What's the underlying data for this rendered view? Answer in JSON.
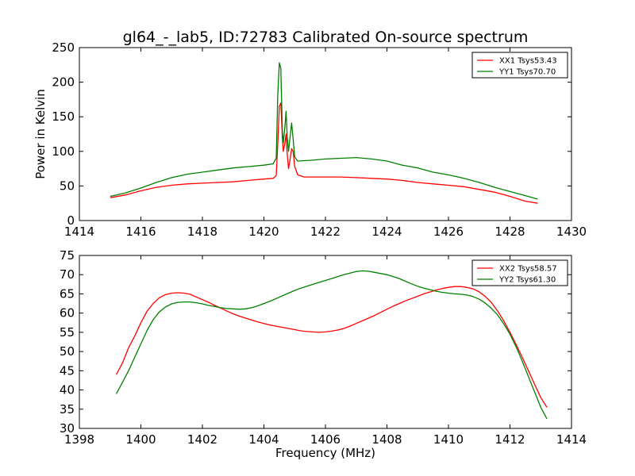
{
  "chart_data": [
    {
      "type": "line",
      "title": "gl64_-_lab5, ID:72783 Calibrated On-source spectrum",
      "xlabel": "",
      "ylabel": "Power in Kelvin",
      "xlim": [
        1414,
        1430
      ],
      "ylim": [
        0,
        250
      ],
      "xticks": [
        1414,
        1416,
        1418,
        1420,
        1422,
        1424,
        1426,
        1428,
        1430
      ],
      "yticks": [
        0,
        50,
        100,
        150,
        200,
        250
      ],
      "grid": false,
      "legend_position": "top-right",
      "series": [
        {
          "name": "XX1 Tsys53.43",
          "color": "#ff0000",
          "points": [
            [
              1415.0,
              33
            ],
            [
              1415.5,
              37
            ],
            [
              1416.0,
              43
            ],
            [
              1416.5,
              48
            ],
            [
              1417.0,
              51
            ],
            [
              1417.5,
              53
            ],
            [
              1418.0,
              54
            ],
            [
              1418.5,
              55
            ],
            [
              1419.0,
              56
            ],
            [
              1419.5,
              58
            ],
            [
              1420.0,
              60
            ],
            [
              1420.3,
              61
            ],
            [
              1420.4,
              65
            ],
            [
              1420.45,
              110
            ],
            [
              1420.5,
              165
            ],
            [
              1420.55,
              170
            ],
            [
              1420.6,
              120
            ],
            [
              1420.63,
              100
            ],
            [
              1420.68,
              112
            ],
            [
              1420.72,
              125
            ],
            [
              1420.75,
              100
            ],
            [
              1420.8,
              75
            ],
            [
              1420.85,
              88
            ],
            [
              1420.9,
              104
            ],
            [
              1420.95,
              100
            ],
            [
              1421.0,
              78
            ],
            [
              1421.1,
              66
            ],
            [
              1421.3,
              63
            ],
            [
              1421.8,
              63
            ],
            [
              1422.5,
              63
            ],
            [
              1423.0,
              62
            ],
            [
              1423.5,
              61
            ],
            [
              1424.0,
              60
            ],
            [
              1424.5,
              58
            ],
            [
              1425.0,
              55
            ],
            [
              1425.5,
              53
            ],
            [
              1426.0,
              51
            ],
            [
              1426.5,
              49
            ],
            [
              1427.0,
              45
            ],
            [
              1427.5,
              41
            ],
            [
              1428.0,
              35
            ],
            [
              1428.5,
              28
            ],
            [
              1428.9,
              25
            ]
          ]
        },
        {
          "name": "YY1 Tsys70.70",
          "color": "#008000",
          "points": [
            [
              1415.0,
              35
            ],
            [
              1415.5,
              40
            ],
            [
              1416.0,
              47
            ],
            [
              1416.5,
              55
            ],
            [
              1417.0,
              62
            ],
            [
              1417.5,
              67
            ],
            [
              1418.0,
              70
            ],
            [
              1418.5,
              73
            ],
            [
              1419.0,
              76
            ],
            [
              1419.5,
              78
            ],
            [
              1420.0,
              80
            ],
            [
              1420.3,
              82
            ],
            [
              1420.4,
              90
            ],
            [
              1420.45,
              180
            ],
            [
              1420.5,
              228
            ],
            [
              1420.55,
              220
            ],
            [
              1420.6,
              130
            ],
            [
              1420.63,
              112
            ],
            [
              1420.68,
              135
            ],
            [
              1420.72,
              158
            ],
            [
              1420.76,
              120
            ],
            [
              1420.8,
              100
            ],
            [
              1420.85,
              120
            ],
            [
              1420.9,
              141
            ],
            [
              1420.95,
              118
            ],
            [
              1421.0,
              92
            ],
            [
              1421.1,
              86
            ],
            [
              1421.5,
              87
            ],
            [
              1422.0,
              89
            ],
            [
              1422.5,
              90
            ],
            [
              1423.0,
              91
            ],
            [
              1423.5,
              89
            ],
            [
              1424.0,
              86
            ],
            [
              1424.5,
              80
            ],
            [
              1425.0,
              76
            ],
            [
              1425.5,
              70
            ],
            [
              1426.0,
              66
            ],
            [
              1426.5,
              61
            ],
            [
              1427.0,
              55
            ],
            [
              1427.5,
              48
            ],
            [
              1428.0,
              42
            ],
            [
              1428.5,
              36
            ],
            [
              1428.9,
              31
            ]
          ]
        }
      ]
    },
    {
      "type": "line",
      "title": "",
      "xlabel": "Frequency (MHz)",
      "ylabel": "",
      "xlim": [
        1398,
        1414
      ],
      "ylim": [
        30,
        75
      ],
      "xticks": [
        1398,
        1400,
        1402,
        1404,
        1406,
        1408,
        1410,
        1412,
        1414
      ],
      "yticks": [
        30,
        35,
        40,
        45,
        50,
        55,
        60,
        65,
        70,
        75
      ],
      "grid": false,
      "legend_position": "top-right",
      "series": [
        {
          "name": "XX2 Tsys58.57",
          "color": "#ff0000",
          "points": [
            [
              1399.2,
              44
            ],
            [
              1399.4,
              47
            ],
            [
              1399.6,
              51
            ],
            [
              1399.8,
              54
            ],
            [
              1400.0,
              57.5
            ],
            [
              1400.2,
              60.5
            ],
            [
              1400.4,
              62.5
            ],
            [
              1400.6,
              64
            ],
            [
              1400.8,
              64.8
            ],
            [
              1401.0,
              65.2
            ],
            [
              1401.2,
              65.3
            ],
            [
              1401.4,
              65.2
            ],
            [
              1401.6,
              64.9
            ],
            [
              1401.8,
              64.2
            ],
            [
              1402.0,
              63.5
            ],
            [
              1402.2,
              62.8
            ],
            [
              1402.4,
              62
            ],
            [
              1402.6,
              61.3
            ],
            [
              1402.8,
              60.5
            ],
            [
              1403.0,
              59.8
            ],
            [
              1403.2,
              59.2
            ],
            [
              1403.4,
              58.7
            ],
            [
              1403.6,
              58.2
            ],
            [
              1403.8,
              57.7
            ],
            [
              1404.0,
              57.3
            ],
            [
              1404.2,
              56.9
            ],
            [
              1404.4,
              56.6
            ],
            [
              1404.6,
              56.3
            ],
            [
              1404.8,
              56
            ],
            [
              1405.0,
              55.7
            ],
            [
              1405.2,
              55.4
            ],
            [
              1405.4,
              55.2
            ],
            [
              1405.6,
              55.1
            ],
            [
              1405.8,
              55
            ],
            [
              1406.0,
              55.1
            ],
            [
              1406.2,
              55.3
            ],
            [
              1406.4,
              55.6
            ],
            [
              1406.6,
              56
            ],
            [
              1406.8,
              56.6
            ],
            [
              1407.0,
              57.3
            ],
            [
              1407.2,
              58
            ],
            [
              1407.4,
              58.7
            ],
            [
              1407.6,
              59.4
            ],
            [
              1407.8,
              60.2
            ],
            [
              1408.0,
              61
            ],
            [
              1408.2,
              61.8
            ],
            [
              1408.4,
              62.5
            ],
            [
              1408.6,
              63.2
            ],
            [
              1408.8,
              63.8
            ],
            [
              1409.0,
              64.4
            ],
            [
              1409.2,
              65
            ],
            [
              1409.4,
              65.5
            ],
            [
              1409.6,
              66
            ],
            [
              1409.8,
              66.4
            ],
            [
              1410.0,
              66.7
            ],
            [
              1410.2,
              66.9
            ],
            [
              1410.4,
              66.9
            ],
            [
              1410.6,
              66.7
            ],
            [
              1410.8,
              66.3
            ],
            [
              1411.0,
              65.5
            ],
            [
              1411.2,
              64.3
            ],
            [
              1411.4,
              62.7
            ],
            [
              1411.6,
              60.5
            ],
            [
              1411.8,
              58
            ],
            [
              1412.0,
              55
            ],
            [
              1412.2,
              51.8
            ],
            [
              1412.4,
              48.5
            ],
            [
              1412.6,
              45
            ],
            [
              1412.8,
              41.5
            ],
            [
              1413.0,
              38
            ],
            [
              1413.2,
              35.5
            ]
          ]
        },
        {
          "name": "YY2 Tsys61.30",
          "color": "#008000",
          "points": [
            [
              1399.2,
              39
            ],
            [
              1399.4,
              42
            ],
            [
              1399.6,
              45
            ],
            [
              1399.8,
              48.5
            ],
            [
              1400.0,
              52
            ],
            [
              1400.2,
              55.5
            ],
            [
              1400.4,
              58.3
            ],
            [
              1400.6,
              60.3
            ],
            [
              1400.8,
              61.6
            ],
            [
              1401.0,
              62.4
            ],
            [
              1401.2,
              62.8
            ],
            [
              1401.4,
              62.9
            ],
            [
              1401.6,
              62.9
            ],
            [
              1401.8,
              62.7
            ],
            [
              1402.0,
              62.4
            ],
            [
              1402.2,
              62
            ],
            [
              1402.4,
              61.7
            ],
            [
              1402.6,
              61.4
            ],
            [
              1402.8,
              61.2
            ],
            [
              1403.0,
              61.1
            ],
            [
              1403.2,
              61
            ],
            [
              1403.4,
              61.1
            ],
            [
              1403.6,
              61.4
            ],
            [
              1403.8,
              61.9
            ],
            [
              1404.0,
              62.5
            ],
            [
              1404.2,
              63.1
            ],
            [
              1404.4,
              63.8
            ],
            [
              1404.6,
              64.5
            ],
            [
              1404.8,
              65.2
            ],
            [
              1405.0,
              65.9
            ],
            [
              1405.2,
              66.5
            ],
            [
              1405.4,
              67
            ],
            [
              1405.6,
              67.5
            ],
            [
              1405.8,
              68
            ],
            [
              1406.0,
              68.5
            ],
            [
              1406.2,
              69
            ],
            [
              1406.4,
              69.5
            ],
            [
              1406.6,
              70
            ],
            [
              1406.8,
              70.4
            ],
            [
              1407.0,
              70.8
            ],
            [
              1407.2,
              71
            ],
            [
              1407.4,
              70.9
            ],
            [
              1407.6,
              70.6
            ],
            [
              1407.8,
              70.3
            ],
            [
              1408.0,
              70
            ],
            [
              1408.2,
              69.5
            ],
            [
              1408.4,
              69
            ],
            [
              1408.6,
              68.3
            ],
            [
              1408.8,
              67.6
            ],
            [
              1409.0,
              67
            ],
            [
              1409.2,
              66.5
            ],
            [
              1409.4,
              66.1
            ],
            [
              1409.6,
              65.7
            ],
            [
              1409.8,
              65.4
            ],
            [
              1410.0,
              65.2
            ],
            [
              1410.2,
              65
            ],
            [
              1410.4,
              64.9
            ],
            [
              1410.6,
              64.7
            ],
            [
              1410.8,
              64.3
            ],
            [
              1411.0,
              63.6
            ],
            [
              1411.2,
              62.6
            ],
            [
              1411.4,
              61.2
            ],
            [
              1411.6,
              59.5
            ],
            [
              1411.8,
              57.2
            ],
            [
              1412.0,
              54.5
            ],
            [
              1412.2,
              51.2
            ],
            [
              1412.4,
              47.5
            ],
            [
              1412.6,
              43.5
            ],
            [
              1412.8,
              39.5
            ],
            [
              1413.0,
              35.5
            ],
            [
              1413.2,
              32.5
            ]
          ]
        }
      ]
    }
  ]
}
